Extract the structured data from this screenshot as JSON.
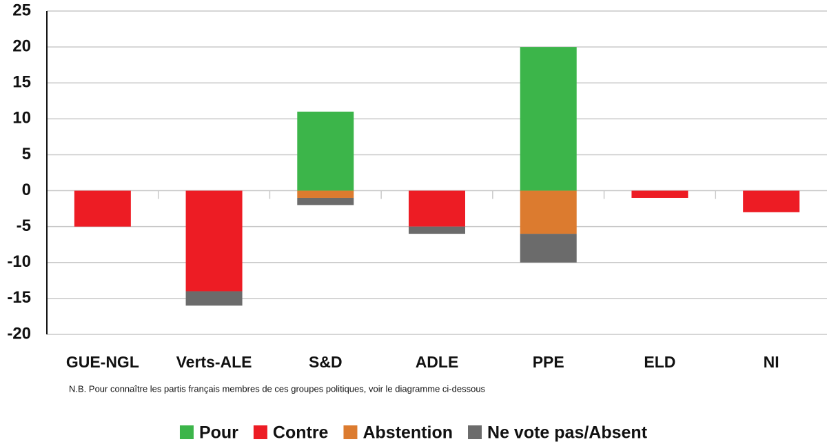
{
  "chart_data": {
    "type": "bar",
    "stacked": true,
    "categories": [
      "GUE-NGL",
      "Verts-ALE",
      "S&D",
      "ADLE",
      "PPE",
      "ELD",
      "NI"
    ],
    "series": [
      {
        "name": "Pour",
        "color": "#3cb54a",
        "values": [
          0,
          0,
          11,
          0,
          20,
          0,
          0
        ]
      },
      {
        "name": "Contre",
        "color": "#ed1c24",
        "values": [
          -5,
          -14,
          0,
          -5,
          0,
          -1,
          -3
        ]
      },
      {
        "name": "Abstention",
        "color": "#dc7b2f",
        "values": [
          0,
          0,
          -1,
          0,
          -6,
          0,
          0
        ]
      },
      {
        "name": "Ne vote pas/Absent",
        "color": "#6b6b6b",
        "values": [
          0,
          -2,
          -1,
          -1,
          -4,
          0,
          0
        ]
      }
    ],
    "ylim": [
      -20,
      25
    ],
    "yticks": [
      -20,
      -15,
      -10,
      -5,
      0,
      5,
      10,
      15,
      20,
      25
    ],
    "grid": true,
    "note": "N.B. Pour connaître les partis français membres de ces groupes politiques, voir le diagramme ci-dessous",
    "legend": "bottom"
  }
}
